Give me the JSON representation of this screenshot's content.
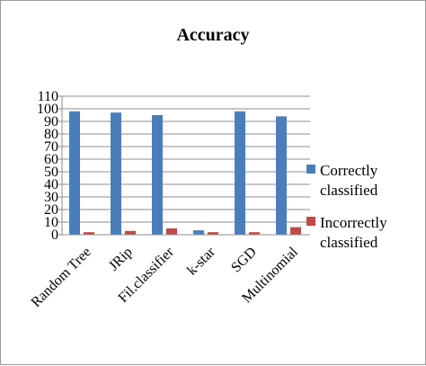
{
  "chart_data": {
    "type": "bar",
    "title": "Accuracy",
    "categories": [
      "Random Tree",
      "JRip",
      "Fil.classifier",
      "k-star",
      "SGD",
      "Multinomial"
    ],
    "series": [
      {
        "name": "Correctly classified",
        "color": "#4a7ebb",
        "values": [
          98,
          97,
          95,
          3.5,
          98,
          94
        ]
      },
      {
        "name": "Incorrectly classified",
        "color": "#be4b48",
        "values": [
          2,
          3,
          5,
          2,
          2,
          6
        ]
      }
    ],
    "ylim": [
      0,
      110
    ],
    "yticks": [
      0,
      10,
      20,
      30,
      40,
      50,
      60,
      70,
      80,
      90,
      100,
      110
    ],
    "grid": true,
    "legend_position": "right",
    "legend_lines": [
      [
        "Correctly",
        "classified"
      ],
      [
        "Incorrectly",
        "classified"
      ]
    ]
  }
}
